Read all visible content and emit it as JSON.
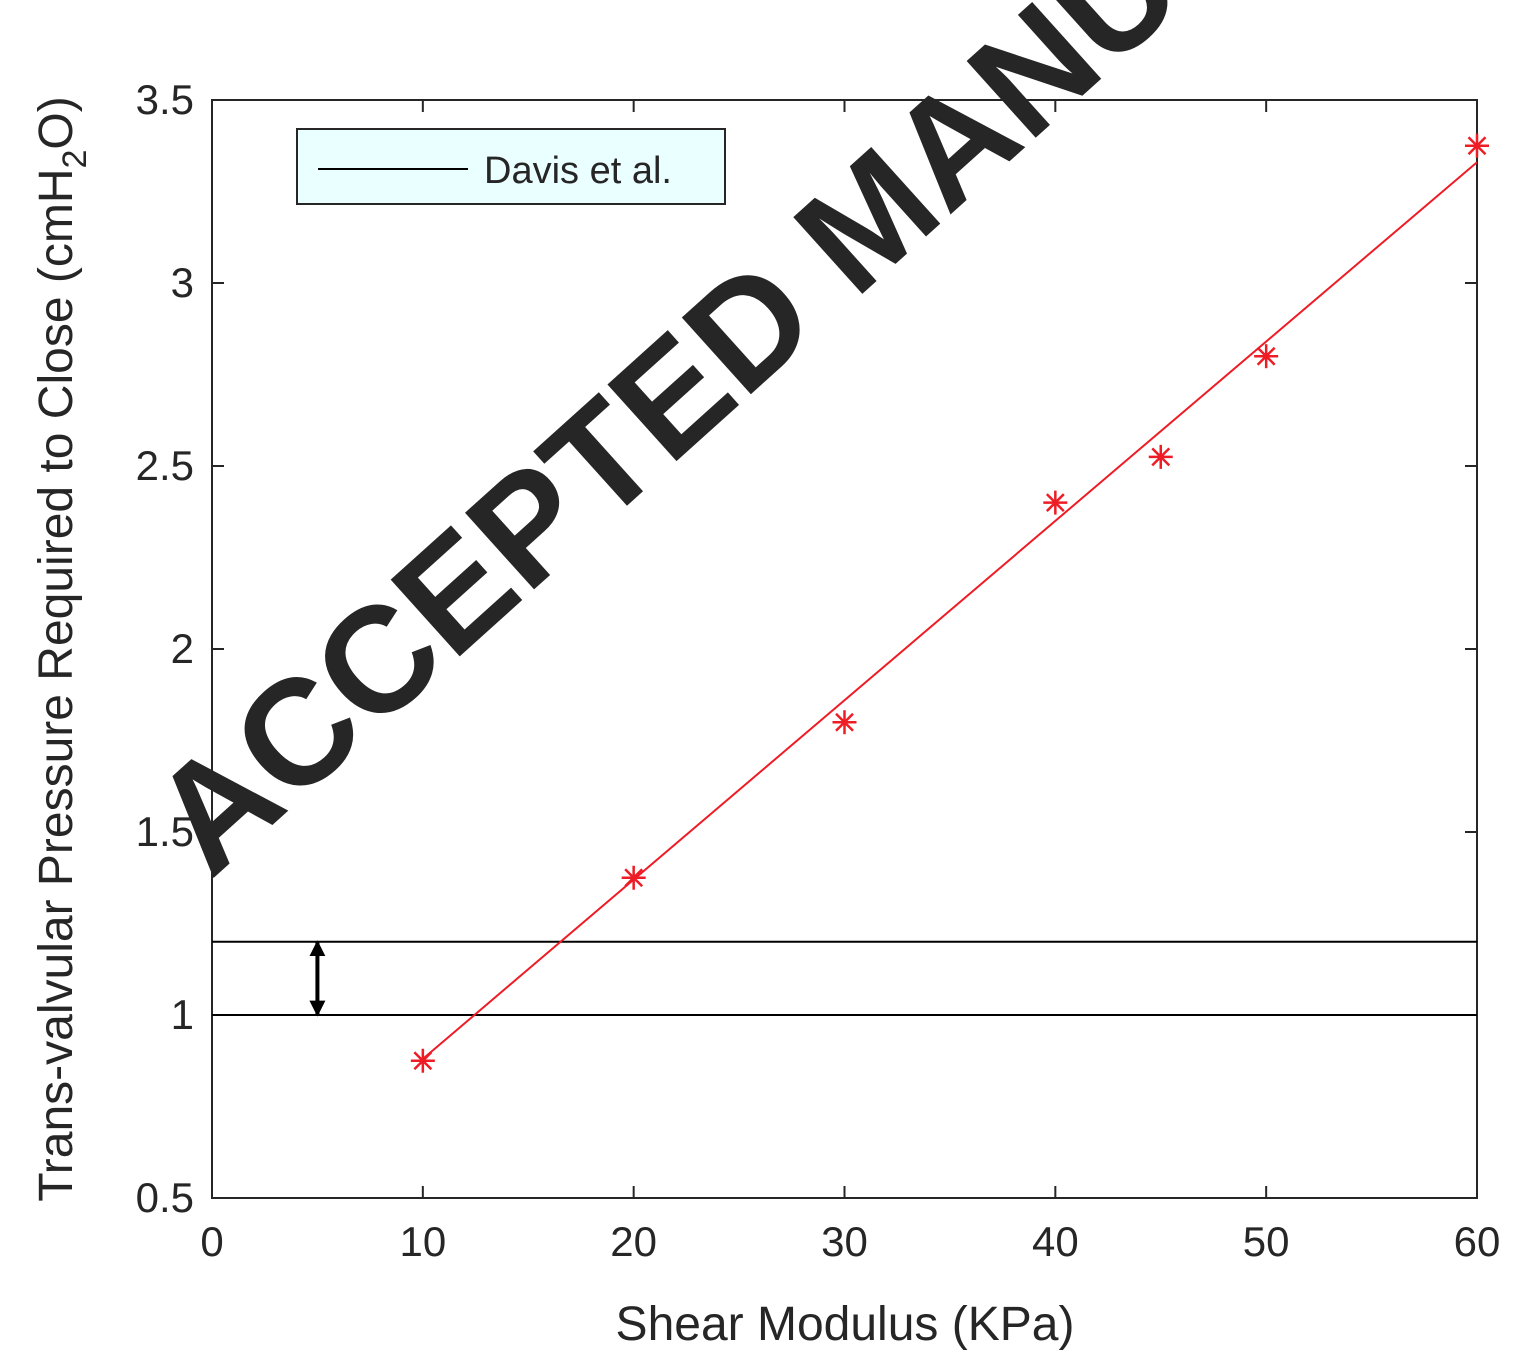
{
  "watermark": "ACCEPTED MANU",
  "chart_data": {
    "type": "scatter",
    "xlabel": "Shear Modulus (KPa)",
    "ylabel_parts": [
      "Trans-valvular Pressure Required to Close (cmH",
      "2",
      "O)"
    ],
    "xlim": [
      0,
      60
    ],
    "ylim": [
      0.5,
      3.5
    ],
    "xticks": [
      0,
      10,
      20,
      30,
      40,
      50,
      60
    ],
    "yticks": [
      0.5,
      1,
      1.5,
      2,
      2.5,
      3,
      3.5
    ],
    "xtick_labels": [
      "0",
      "10",
      "20",
      "30",
      "40",
      "50",
      "60"
    ],
    "ytick_labels": [
      "0.5",
      "1",
      "1.5",
      "2",
      "2.5",
      "3",
      "3.5"
    ],
    "grid": false,
    "legend": {
      "position": "top-left",
      "background": "#eaffff",
      "entries": [
        "Davis et al."
      ]
    },
    "series": [
      {
        "marker": "asterisk",
        "color": "#ee1c25",
        "x": [
          10,
          20,
          30,
          40,
          45,
          50,
          60
        ],
        "y": [
          0.875,
          1.375,
          1.8,
          2.4,
          2.525,
          2.8,
          3.375
        ]
      }
    ],
    "fit_line": {
      "color": "#ee1c25",
      "x": [
        10,
        60
      ],
      "y": [
        0.88,
        3.33
      ]
    },
    "reference_lines": {
      "color": "#000000",
      "y": [
        1.0,
        1.2
      ],
      "legend_entry": "Davis et al."
    },
    "range_arrow": {
      "x": 5,
      "y_from": 1.0,
      "y_to": 1.2
    },
    "colors": {
      "axis": "#262626",
      "data": "#ee1c25",
      "reference": "#000000",
      "legend_bg": "#eaffff",
      "watermark": "#c8c8c8"
    }
  }
}
